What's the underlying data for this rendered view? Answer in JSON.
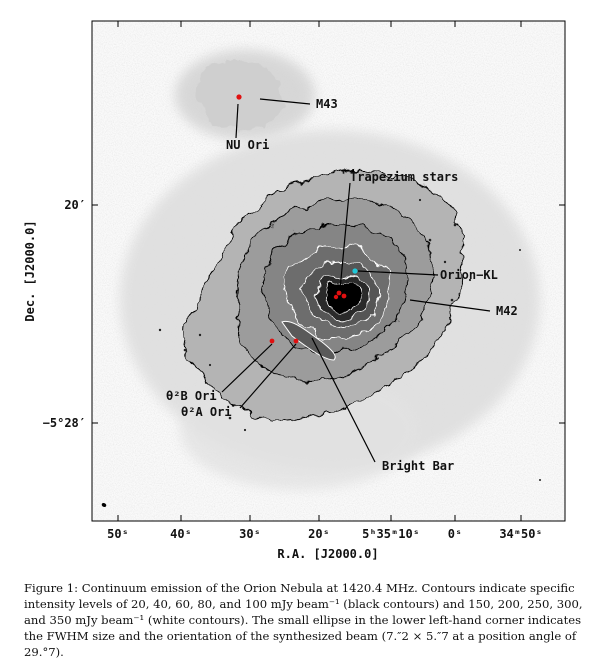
{
  "figure": {
    "xlabel": "R.A. [J2000.0]",
    "ylabel": "Dec. [J2000.0]",
    "x_ticks": [
      "50ˢ",
      "40ˢ",
      "30ˢ",
      "20ˢ",
      "5ʰ35ᵐ10ˢ",
      "0ˢ",
      "34ᵐ50ˢ"
    ],
    "y_ticks": [
      "20′",
      "−5°28′"
    ],
    "labels": {
      "m43": "M43",
      "nu_ori": "NU Ori",
      "trapezium": "Trapezium stars",
      "orion_kl": "Orion−KL",
      "m42": "M42",
      "theta2b": "θ²B Ori",
      "theta2a": "θ²A Ori",
      "bright_bar": "Bright Bar"
    },
    "colors": {
      "star_marker": "#e01010",
      "orion_kl_marker": "#20c8d8",
      "contour_black": "#000000",
      "contour_white": "#ffffff"
    }
  },
  "caption": {
    "text": "Figure 1: Continuum emission of the Orion Nebula at 1420.4 MHz. Contours indicate specific intensity levels of 20, 40, 60, 80, and 100 mJy beam⁻¹ (black contours) and 150, 200, 250, 300, and 350 mJy beam⁻¹ (white contours). The small ellipse in the lower left-hand corner indicates the FWHM size and the orientation of the synthesized beam (7.″2 × 5.″7 at a position angle of 29.°7)."
  }
}
